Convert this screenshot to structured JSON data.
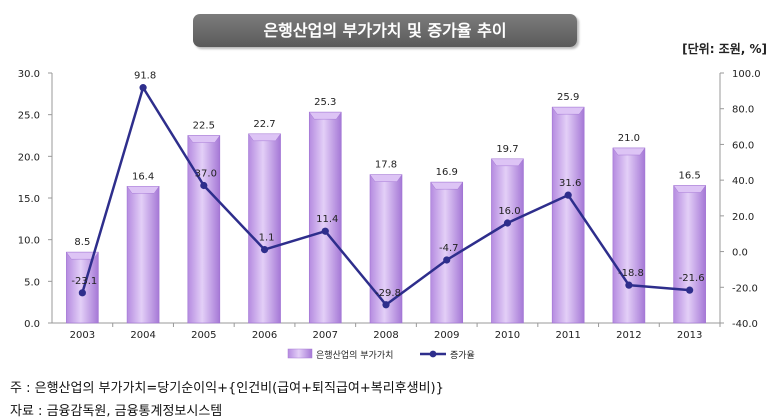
{
  "title": "은행산업의 부가가치 및 증가율 추이",
  "unit": "[단위: 조원, %]",
  "footnote": "주 : 은행산업의 부가가치=당기순이익+{인건비(급여+퇴직급여+복리후생비)}",
  "source": "자료 :  금융감독원, 금융통계정보시스템",
  "colors": {
    "bar": "#c7a3ec",
    "bar_edge": "#a77ad6",
    "line": "#2e2e8c",
    "title_bg": "#6b6b6b"
  },
  "chart_data": {
    "type": "bar+line",
    "categories": [
      "2003",
      "2004",
      "2005",
      "2006",
      "2007",
      "2008",
      "2009",
      "2010",
      "2011",
      "2012",
      "2013"
    ],
    "series": [
      {
        "name": "은행산업의 부가가치",
        "type": "bar",
        "axis": "left",
        "values": [
          8.5,
          16.4,
          22.5,
          22.7,
          25.3,
          17.8,
          16.9,
          19.7,
          25.9,
          21.0,
          16.5
        ],
        "labels": [
          "8.5",
          "16.4",
          "22.5",
          "22.7",
          "25.3",
          "17.8",
          "16.9",
          "19.7",
          "25.9",
          "21.0",
          "16.5"
        ]
      },
      {
        "name": "증가율",
        "type": "line",
        "axis": "right",
        "values": [
          -23.1,
          91.8,
          37.0,
          1.1,
          11.4,
          -29.8,
          -4.7,
          16.0,
          31.6,
          -18.8,
          -21.6
        ],
        "labels": [
          "-23.1",
          "91.8",
          "37.0",
          "1.1",
          "11.4",
          "-29.8",
          "-4.7",
          "16.0",
          "31.6",
          "-18.8",
          "-21.6"
        ]
      }
    ],
    "y_left": {
      "min": 0,
      "max": 30,
      "ticks": [
        "0.0",
        "5.0",
        "10.0",
        "15.0",
        "20.0",
        "25.0",
        "30.0"
      ]
    },
    "y_right": {
      "min": -40,
      "max": 100,
      "ticks": [
        "-40.0",
        "-20.0",
        "0.0",
        "20.0",
        "40.0",
        "60.0",
        "80.0",
        "100.0"
      ]
    },
    "legend_position": "bottom",
    "grid": false
  }
}
